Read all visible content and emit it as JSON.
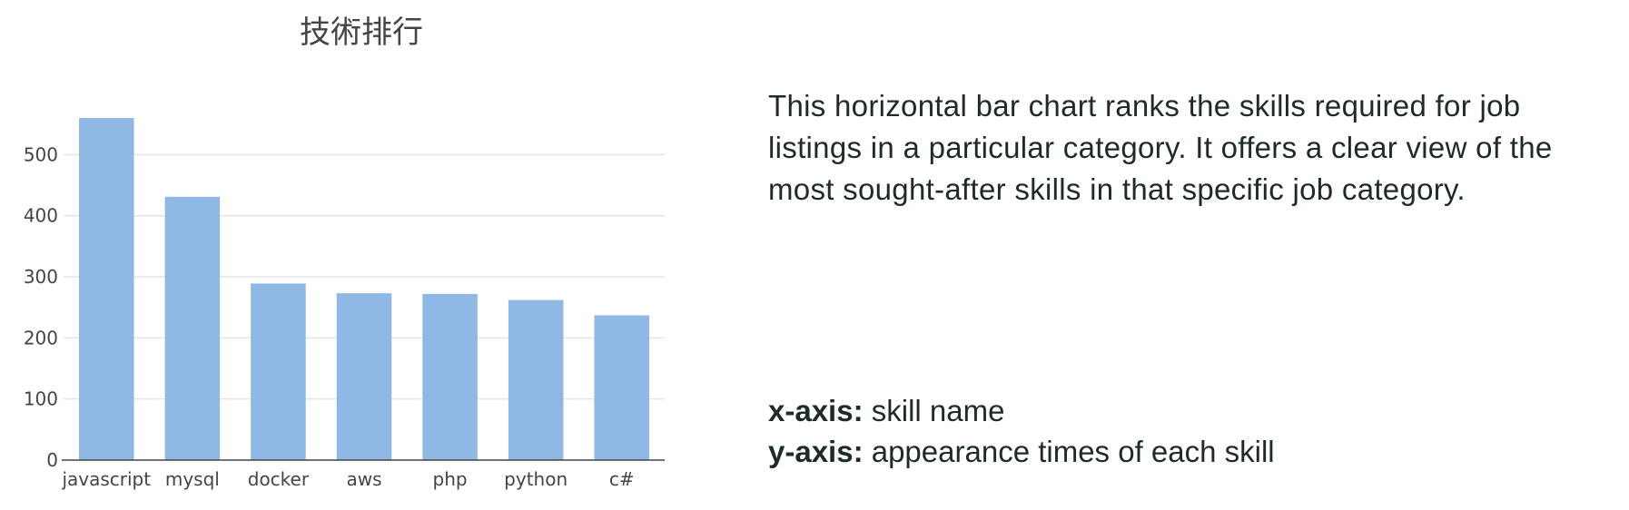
{
  "chart_data": {
    "type": "bar",
    "title": "技術排行",
    "categories": [
      "javascript",
      "mysql",
      "docker",
      "aws",
      "php",
      "python",
      "c#"
    ],
    "values": [
      560,
      431,
      289,
      273,
      272,
      262,
      237
    ],
    "ylim": [
      0,
      560
    ],
    "yticks": [
      0,
      100,
      200,
      300,
      400,
      500
    ],
    "grid": true,
    "bar_color": "#8fb8e4"
  },
  "description": "This horizontal bar chart ranks the skills required for job listings in a particular category. It offers a clear view of the most sought-after skills in that specific job category.",
  "axis_notes": {
    "x_key": "x-axis:",
    "x_text": " skill name",
    "y_key": "y-axis:",
    "y_text": " appearance times of each skill"
  },
  "colors": {
    "text": "#1e2b26",
    "axis": "#444444",
    "grid": "#e6e6e6"
  }
}
